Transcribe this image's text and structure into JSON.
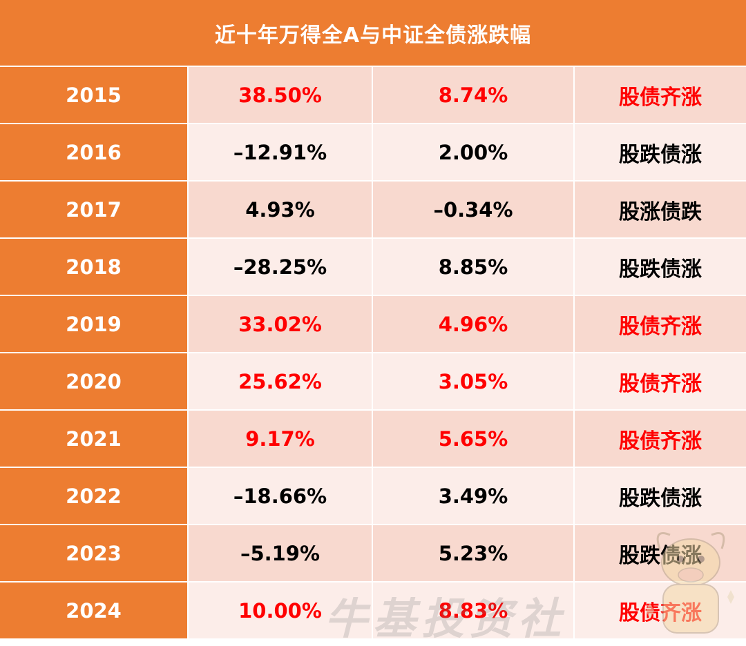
{
  "title": "近十年万得全A与中证全债涨跌幅",
  "colors": {
    "header_bg": "#ED7D31",
    "row_dark": "#F8D9CF",
    "row_light": "#FCEDE9",
    "highlight_text": "#FF0000",
    "normal_text": "#000000"
  },
  "rows": [
    {
      "year": "2015",
      "stock": "38.50%",
      "bond": "8.74%",
      "judge": "股债齐涨",
      "highlight": true
    },
    {
      "year": "2016",
      "stock": "–12.91%",
      "bond": "2.00%",
      "judge": "股跌债涨",
      "highlight": false
    },
    {
      "year": "2017",
      "stock": "4.93%",
      "bond": "–0.34%",
      "judge": "股涨债跌",
      "highlight": false
    },
    {
      "year": "2018",
      "stock": "–28.25%",
      "bond": "8.85%",
      "judge": "股跌债涨",
      "highlight": false
    },
    {
      "year": "2019",
      "stock": "33.02%",
      "bond": "4.96%",
      "judge": "股债齐涨",
      "highlight": true
    },
    {
      "year": "2020",
      "stock": "25.62%",
      "bond": "3.05%",
      "judge": "股债齐涨",
      "highlight": true
    },
    {
      "year": "2021",
      "stock": "9.17%",
      "bond": "5.65%",
      "judge": "股债齐涨",
      "highlight": true
    },
    {
      "year": "2022",
      "stock": "–18.66%",
      "bond": "3.49%",
      "judge": "股跌债涨",
      "highlight": false
    },
    {
      "year": "2023",
      "stock": "–5.19%",
      "bond": "5.23%",
      "judge": "股跌债涨",
      "highlight": false
    },
    {
      "year": "2024",
      "stock": "10.00%",
      "bond": "8.83%",
      "judge": "股债齐涨",
      "highlight": true
    }
  ],
  "watermark": {
    "text": "牛基投资社",
    "logo": "bull-mascot-icon"
  }
}
